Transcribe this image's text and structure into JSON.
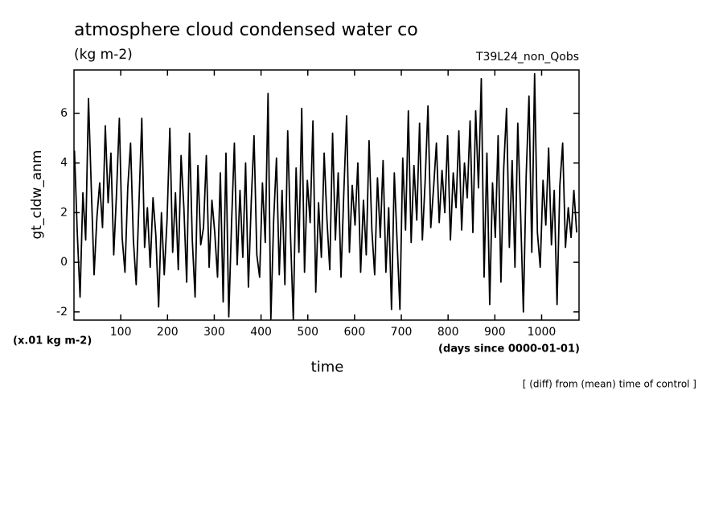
{
  "chart_data": {
    "type": "line",
    "title": "atmosphere cloud condensed water co",
    "subtitle": "(kg m-2)",
    "run_label": "T39L24_non_Qobs",
    "y_label": "gt_cldw_anm",
    "y_unit": "(x.01 kg m-2)",
    "x_label": "time",
    "x_unit": "(days since 0000-01-01)",
    "note": "[ (diff) from (mean) time of control ]",
    "color": "#000000",
    "xlim": [
      0,
      1080
    ],
    "ylim": [
      -2.33,
      7.75
    ],
    "xticks": [
      100,
      200,
      300,
      400,
      500,
      600,
      700,
      800,
      900,
      1000
    ],
    "yticks": [
      -2,
      0,
      2,
      4,
      6
    ],
    "x": [
      1,
      7,
      13,
      19,
      25,
      31,
      37,
      43,
      49,
      55,
      61,
      67,
      73,
      79,
      85,
      91,
      97,
      103,
      109,
      115,
      121,
      127,
      133,
      139,
      145,
      151,
      157,
      163,
      169,
      175,
      181,
      187,
      193,
      199,
      205,
      211,
      217,
      223,
      229,
      235,
      241,
      247,
      253,
      259,
      265,
      271,
      277,
      283,
      289,
      295,
      301,
      307,
      313,
      319,
      325,
      331,
      337,
      343,
      349,
      355,
      361,
      367,
      373,
      379,
      385,
      391,
      397,
      403,
      409,
      415,
      421,
      427,
      433,
      439,
      445,
      451,
      457,
      463,
      469,
      475,
      481,
      487,
      493,
      499,
      505,
      511,
      517,
      523,
      529,
      535,
      541,
      547,
      553,
      559,
      565,
      571,
      577,
      583,
      589,
      595,
      601,
      607,
      613,
      619,
      625,
      631,
      637,
      643,
      649,
      655,
      661,
      667,
      673,
      679,
      685,
      691,
      697,
      703,
      709,
      715,
      721,
      727,
      733,
      739,
      745,
      751,
      757,
      763,
      769,
      775,
      781,
      787,
      793,
      799,
      805,
      811,
      817,
      823,
      829,
      835,
      841,
      847,
      853,
      859,
      865,
      871,
      877,
      883,
      889,
      895,
      901,
      907,
      913,
      919,
      925,
      931,
      937,
      943,
      949,
      955,
      961,
      967,
      973,
      979,
      985,
      991,
      997,
      1003,
      1009,
      1015,
      1021,
      1027,
      1033,
      1039,
      1045,
      1051,
      1057,
      1063,
      1069,
      1075
    ],
    "values": [
      4.5,
      1.2,
      -1.4,
      2.8,
      0.9,
      6.6,
      3.0,
      -0.5,
      1.8,
      3.2,
      1.4,
      5.5,
      2.4,
      4.4,
      0.3,
      2.8,
      5.8,
      1.0,
      -0.4,
      3.0,
      4.8,
      0.9,
      -0.9,
      2.4,
      5.8,
      0.6,
      2.2,
      -0.2,
      2.6,
      1.1,
      -1.8,
      2.0,
      -0.5,
      1.7,
      5.4,
      0.4,
      2.8,
      -0.3,
      4.3,
      2.2,
      -0.8,
      5.2,
      0.9,
      -1.4,
      3.9,
      0.7,
      1.4,
      4.3,
      -0.2,
      2.5,
      1.2,
      -0.6,
      3.6,
      -1.6,
      4.4,
      -2.2,
      1.6,
      4.8,
      -0.1,
      2.9,
      0.2,
      4.0,
      -1.0,
      2.4,
      5.1,
      0.3,
      -0.6,
      3.2,
      0.8,
      6.8,
      -2.3,
      1.7,
      4.2,
      -0.5,
      2.9,
      -0.9,
      5.3,
      1.1,
      -2.3,
      3.8,
      0.4,
      6.2,
      -0.4,
      3.3,
      1.6,
      5.7,
      -1.2,
      2.4,
      0.2,
      4.4,
      1.7,
      -0.3,
      5.2,
      0.9,
      3.6,
      -0.6,
      2.8,
      5.9,
      0.4,
      3.1,
      1.5,
      4.0,
      -0.4,
      2.5,
      0.3,
      4.9,
      1.3,
      -0.5,
      3.4,
      1.0,
      4.1,
      -0.4,
      2.2,
      -1.9,
      3.6,
      0.8,
      -1.9,
      4.2,
      1.3,
      6.1,
      0.8,
      3.9,
      1.7,
      5.6,
      0.9,
      3.3,
      6.3,
      1.4,
      3.0,
      4.8,
      1.6,
      3.7,
      2.0,
      5.1,
      0.9,
      3.6,
      2.2,
      5.3,
      1.3,
      4.0,
      2.6,
      5.7,
      1.2,
      6.1,
      3.0,
      7.4,
      -0.6,
      4.4,
      -1.7,
      3.2,
      1.0,
      5.1,
      -0.8,
      3.8,
      6.2,
      0.6,
      4.1,
      -0.2,
      5.6,
      2.0,
      -2.0,
      3.5,
      6.7,
      0.4,
      7.6,
      1.2,
      -0.2,
      3.3,
      1.5,
      4.6,
      0.7,
      2.9,
      -1.7,
      3.1,
      4.8,
      0.6,
      2.2,
      1.0,
      2.9,
      1.2
    ]
  }
}
